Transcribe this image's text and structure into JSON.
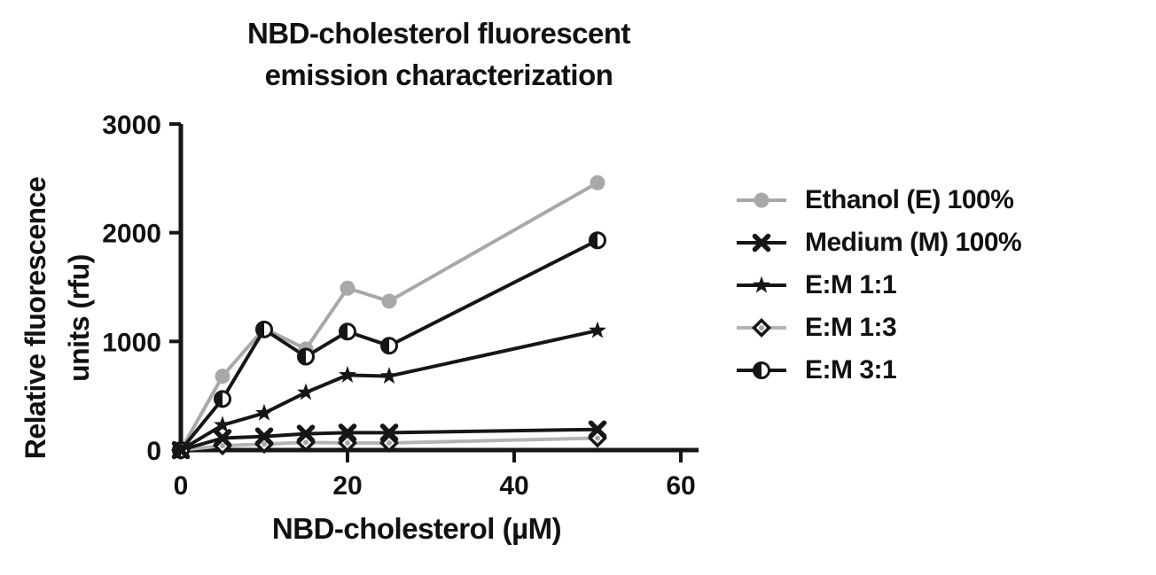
{
  "title": {
    "line1": "NBD-cholesterol fluorescent",
    "line2": "emission characterization"
  },
  "axes": {
    "y_label_line1": "Relative fluorescence",
    "y_label_line2": "units (rfu)",
    "x_label": "NBD-cholesterol (µM)",
    "y_ticks": [
      0,
      1000,
      2000,
      3000
    ],
    "x_ticks": [
      0,
      20,
      40,
      60
    ],
    "xlim": [
      0,
      60
    ],
    "ylim": [
      0,
      3000
    ]
  },
  "colors": {
    "black": "#161616",
    "gray_series": "#a8a8a8",
    "gray_line_13": "#b4b4b4",
    "axis": "#161616"
  },
  "chart_data": {
    "type": "line",
    "title": "NBD-cholesterol fluorescent emission characterization",
    "xlabel": "NBD-cholesterol (µM)",
    "ylabel": "Relative fluorescence units (rfu)",
    "x": [
      0,
      5,
      10,
      15,
      20,
      25,
      50
    ],
    "xlim": [
      0,
      60
    ],
    "ylim": [
      0,
      3000
    ],
    "grid": false,
    "legend_position": "right",
    "series": [
      {
        "name": "Ethanol (E) 100%",
        "marker": "circle",
        "color": "#a8a8a8",
        "line_color": "#a8a8a8",
        "values": [
          0,
          680,
          1120,
          930,
          1490,
          1370,
          2460
        ]
      },
      {
        "name": "Medium (M) 100%",
        "marker": "x",
        "color": "#161616",
        "line_color": "#161616",
        "values": [
          0,
          110,
          125,
          150,
          160,
          160,
          190
        ]
      },
      {
        "name": "E:M 1:1",
        "marker": "star",
        "color": "#161616",
        "line_color": "#161616",
        "values": [
          0,
          230,
          340,
          530,
          690,
          680,
          1100
        ]
      },
      {
        "name": "E:M 1:3",
        "marker": "diamond",
        "color": "#161616",
        "line_color": "#b4b4b4",
        "values": [
          0,
          40,
          55,
          70,
          65,
          65,
          110
        ]
      },
      {
        "name": "E:M 3:1",
        "marker": "halfcircle",
        "color": "#161616",
        "line_color": "#161616",
        "values": [
          0,
          470,
          1110,
          860,
          1090,
          960,
          1930
        ]
      }
    ]
  }
}
